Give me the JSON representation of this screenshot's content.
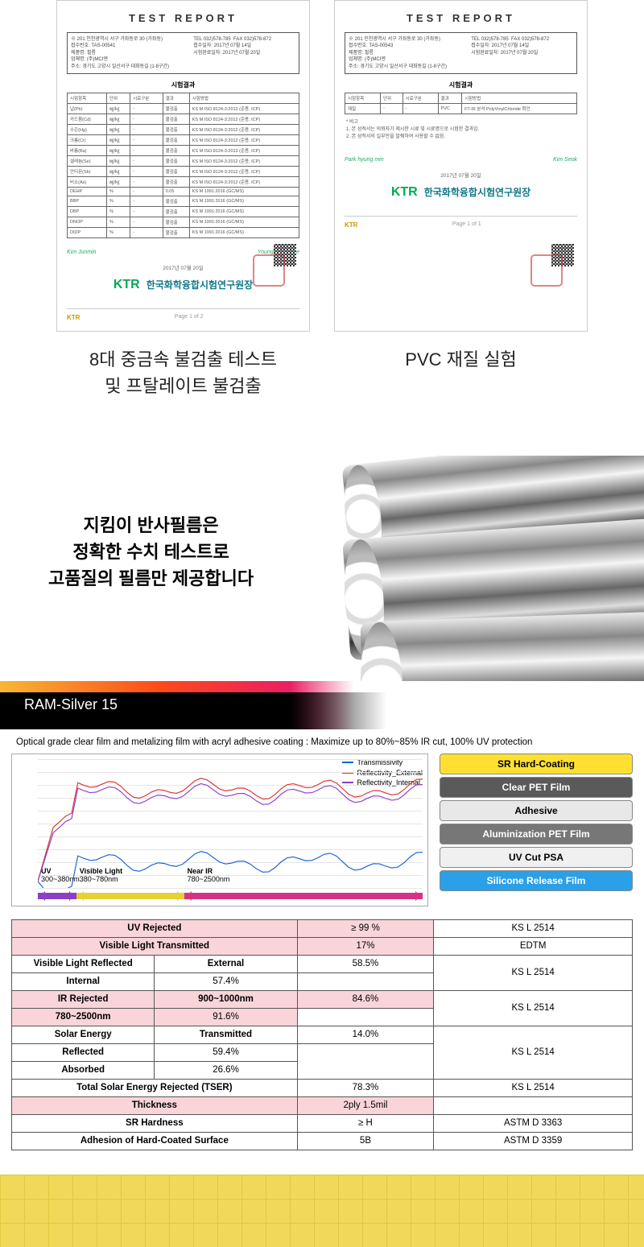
{
  "reports": {
    "title": "TEST REPORT",
    "subheading": "시험결과",
    "ktr_logo": "KTR",
    "ktr_text": "한국화학융합시험연구원장",
    "footer_label": "KTR",
    "left_caption_l1": "8대 중금속 불검출 테스트",
    "left_caption_l2": "및 프탈레이트 불검출",
    "right_caption": "PVC 재질 실험",
    "tbl_cols": [
      "시험항목",
      "단위",
      "시료구분",
      "결과",
      "시험방법"
    ],
    "left_rows": [
      [
        "납(Pb)",
        "㎎/㎏",
        "-",
        "불검출",
        "KS M ISO 8124-3:2012 (준용, ICP)"
      ],
      [
        "카드뮴(Cd)",
        "㎎/㎏",
        "-",
        "불검출",
        "KS M ISO 8124-3:2012 (준용, ICP)"
      ],
      [
        "수은(Hg)",
        "㎎/㎏",
        "-",
        "불검출",
        "KS M ISO 8124-3:2012 (준용, ICP)"
      ],
      [
        "크롬(Cr)",
        "㎎/㎏",
        "-",
        "불검출",
        "KS M ISO 8124-3:2012 (준용, ICP)"
      ],
      [
        "바륨(Ba)",
        "㎎/㎏",
        "-",
        "불검출",
        "KS M ISO 8124-3:2012 (준용, ICP)"
      ],
      [
        "셀레늄(Se)",
        "㎎/㎏",
        "-",
        "불검출",
        "KS M ISO 8124-3:2012 (준용, ICP)"
      ],
      [
        "안티몬(Sb)",
        "㎎/㎏",
        "-",
        "불검출",
        "KS M ISO 8124-3:2012 (준용, ICP)"
      ],
      [
        "비소(As)",
        "㎎/㎏",
        "-",
        "불검출",
        "KS M ISO 8124-3:2012 (준용, ICP)"
      ],
      [
        "DEHP",
        "%",
        "-",
        "0.05",
        "KS M 1991:2016 (GC/MS)"
      ],
      [
        "BBP",
        "%",
        "-",
        "불검출",
        "KS M 1991:2016 (GC/MS)"
      ],
      [
        "DBP",
        "%",
        "-",
        "불검출",
        "KS M 1991:2016 (GC/MS)"
      ],
      [
        "DNOP",
        "%",
        "-",
        "불검출",
        "KS M 1991:2016 (GC/MS)"
      ],
      [
        "DIDP",
        "%",
        "-",
        "불검출",
        "KS M 1991:2016 (GC/MS)"
      ]
    ]
  },
  "hero": {
    "l1": "지킴이 반사필름은",
    "l2": "정확한 수치 테스트로",
    "l3": "고품질의 필름만 제공합니다"
  },
  "banner_label": "RAM-Silver 15",
  "description": "Optical grade clear film and metalizing film with acryl adhesive coating : Maximize up to 80%~85% IR cut, 100% UV protection",
  "chart": {
    "legend": [
      {
        "label": "Transmissivity",
        "color": "#1560d8"
      },
      {
        "label": "Reflectivity_External",
        "color": "#e03030"
      },
      {
        "label": "Reflectivity_Internal",
        "color": "#8b3fc7"
      }
    ],
    "regions": [
      {
        "label": "UV",
        "sub": "300~380nm",
        "color": "#8b3fc7",
        "x": 0,
        "w": 10
      },
      {
        "label": "Visible Light",
        "sub": "380~780nm",
        "color": "#e9d030",
        "x": 10,
        "w": 28
      },
      {
        "label": "Near IR",
        "sub": "780~2500nm",
        "color": "#d63384",
        "x": 38,
        "w": 62
      }
    ],
    "ylim": [
      0,
      100
    ],
    "xlim": [
      300,
      2500
    ],
    "grid_color": "#e5e5e5",
    "background_color": "#ffffff"
  },
  "layers": [
    {
      "label": "SR Hard-Coating",
      "bg": "#ffe030",
      "fg": "#000"
    },
    {
      "label": "Clear PET Film",
      "bg": "#5a5a5a",
      "fg": "#fff"
    },
    {
      "label": "Adhesive",
      "bg": "#e8e8e8",
      "fg": "#000"
    },
    {
      "label": "Aluminization PET Film",
      "bg": "#777",
      "fg": "#fff"
    },
    {
      "label": "UV Cut PSA",
      "bg": "#f0f0f0",
      "fg": "#000"
    },
    {
      "label": "Silicone Release Film",
      "bg": "#2aa0e8",
      "fg": "#fff"
    }
  ],
  "spec": {
    "rows": [
      {
        "c": [
          "UV Rejected",
          "",
          "≥ 99 %",
          "KS L 2514"
        ],
        "span": [
          2,
          0,
          1,
          1
        ],
        "pink": [
          0,
          2
        ]
      },
      {
        "c": [
          "Visible Light Transmitted",
          "",
          "17%",
          "EDTM"
        ],
        "span": [
          2,
          0,
          1,
          1
        ],
        "pink": [
          0,
          2
        ]
      },
      {
        "c": [
          "Visible Light Reflected",
          "External",
          "58.5%",
          "KS L 2514"
        ],
        "span": [
          1,
          1,
          1,
          -2
        ]
      },
      {
        "c": [
          "",
          "Internal",
          "57.4%",
          ""
        ],
        "span": [
          0,
          1,
          1,
          0
        ]
      },
      {
        "c": [
          "IR Rejected",
          "900~1000nm",
          "84.6%",
          "KS L 2514"
        ],
        "span": [
          1,
          1,
          1,
          -2
        ],
        "pink": [
          0,
          1,
          2
        ]
      },
      {
        "c": [
          "",
          "780~2500nm",
          "91.6%",
          ""
        ],
        "span": [
          0,
          1,
          1,
          0
        ],
        "pink": [
          1,
          2
        ]
      },
      {
        "c": [
          "Solar Energy",
          "Transmitted",
          "14.0%",
          "KS L 2514"
        ],
        "span": [
          1,
          1,
          1,
          -3
        ]
      },
      {
        "c": [
          "",
          "Reflected",
          "59.4%",
          ""
        ],
        "span": [
          0,
          1,
          1,
          0
        ]
      },
      {
        "c": [
          "",
          "Absorbed",
          "26.6%",
          ""
        ],
        "span": [
          0,
          1,
          1,
          0
        ]
      },
      {
        "c": [
          "Total Solar Energy Rejected (TSER)",
          "",
          "78.3%",
          "KS L 2514"
        ],
        "span": [
          2,
          0,
          1,
          1
        ]
      },
      {
        "c": [
          "Thickness",
          "",
          "2ply 1.5mil",
          ""
        ],
        "span": [
          2,
          0,
          1,
          1
        ],
        "pink": [
          0,
          2
        ]
      },
      {
        "c": [
          "SR Hardness",
          "",
          "≥ H",
          "ASTM D 3363"
        ],
        "span": [
          2,
          0,
          1,
          1
        ]
      },
      {
        "c": [
          "Adhesion of Hard-Coated Surface",
          "",
          "5B",
          "ASTM D 3359"
        ],
        "span": [
          2,
          0,
          1,
          1
        ]
      }
    ],
    "col_widths": [
      "23%",
      "23%",
      "22%",
      "32%"
    ]
  }
}
